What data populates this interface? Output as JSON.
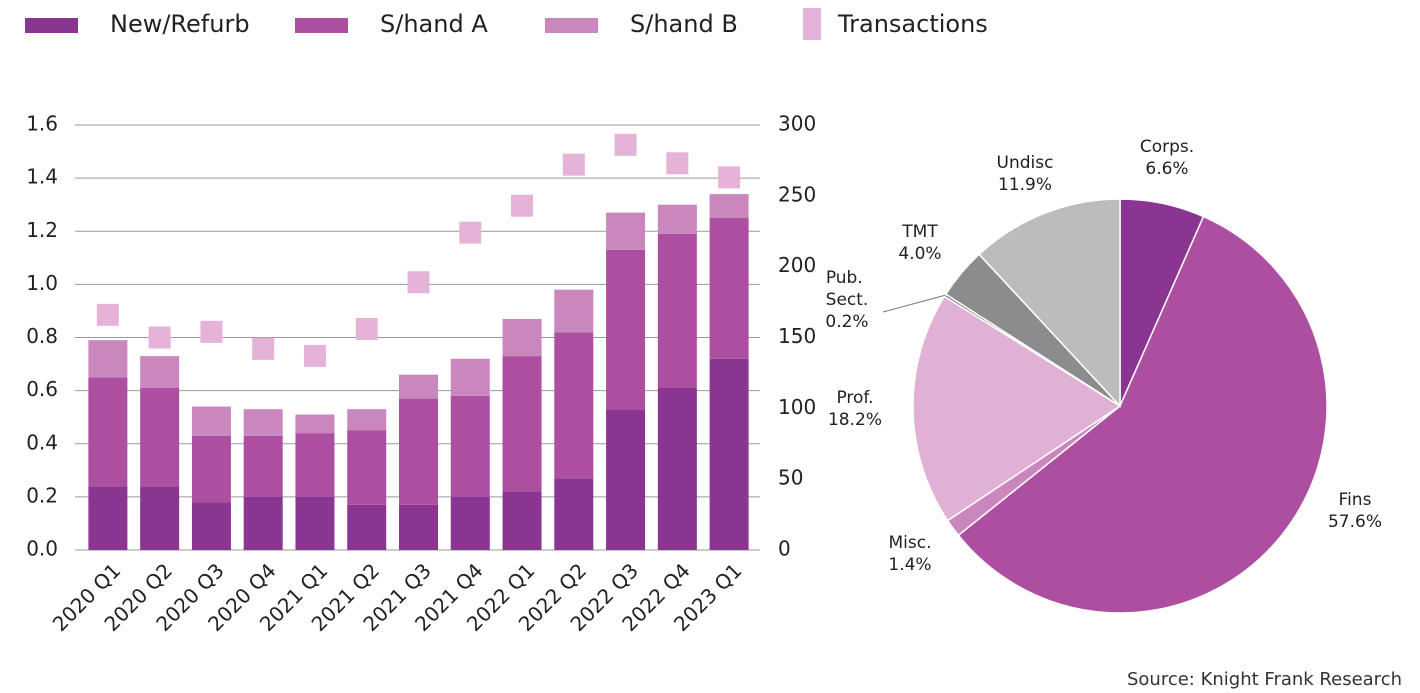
{
  "chart_data": [
    {
      "type": "bar",
      "stacked": true,
      "legend": "top",
      "categories": [
        "2020 Q1",
        "2020 Q2",
        "2020 Q3",
        "2020 Q4",
        "2021 Q1",
        "2021 Q2",
        "2021 Q3",
        "2021 Q4",
        "2022 Q1",
        "2022 Q2",
        "2022 Q3",
        "2022 Q4",
        "2023 Q1"
      ],
      "series": [
        {
          "name": "New/Refurb",
          "color": "#8b3593",
          "values": [
            0.24,
            0.24,
            0.18,
            0.2,
            0.2,
            0.17,
            0.17,
            0.2,
            0.22,
            0.27,
            0.53,
            0.61,
            0.72
          ]
        },
        {
          "name": "S/hand A",
          "color": "#ad4fa0",
          "values": [
            0.41,
            0.37,
            0.25,
            0.23,
            0.24,
            0.28,
            0.4,
            0.38,
            0.51,
            0.55,
            0.6,
            0.58,
            0.53
          ]
        },
        {
          "name": "S/hand B",
          "color": "#c987bd",
          "values": [
            0.14,
            0.12,
            0.11,
            0.1,
            0.07,
            0.08,
            0.09,
            0.14,
            0.14,
            0.16,
            0.14,
            0.11,
            0.09
          ]
        },
        {
          "name": "Transactions",
          "type": "scatter",
          "marker": "square",
          "axis": "y2",
          "color": "#e6b3d8",
          "values": [
            166,
            150,
            154,
            142,
            137,
            156,
            189,
            224,
            243,
            272,
            286,
            273,
            263
          ]
        }
      ],
      "ylim": [
        0,
        1.6
      ],
      "yticks": [
        {
          "value": 0,
          "label": "0.0"
        },
        0.2,
        0.4,
        0.6,
        0.8,
        {
          "value": 1,
          "label": "1.0"
        },
        1.2,
        1.4,
        1.6
      ],
      "y2lim": [
        0,
        300
      ],
      "y2ticks": [
        0,
        50,
        100,
        150,
        200,
        250,
        300
      ],
      "grid": true
    },
    {
      "type": "pie",
      "categories": [
        "Corps.",
        "Fins",
        "Misc.",
        "Prof.",
        "Pub. Sect.",
        "TMT",
        "Undisc"
      ],
      "values": [
        6.6,
        57.6,
        1.4,
        18.2,
        0.2,
        4.0,
        11.9
      ],
      "value_labels": [
        "6.6%",
        "57.6%",
        "1.4%",
        "18.2%",
        "0.2%",
        "4.0%",
        "11.9%"
      ],
      "colors": [
        "#8b3593",
        "#ad4fa0",
        "#c987bd",
        "#e0b0d5",
        "#6e6e70",
        "#8c8c8e",
        "#bcbcbf"
      ]
    }
  ],
  "source": "Source: Knight Frank Research"
}
